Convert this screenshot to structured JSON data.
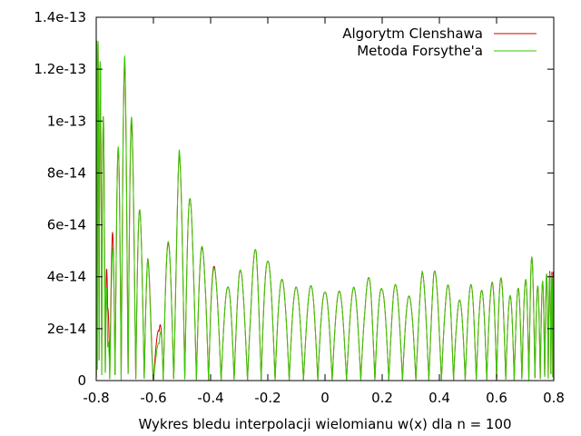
{
  "chart_data": {
    "type": "line",
    "title": "",
    "xlabel": "Wykres bledu interpolacji wielomianu w(x) dla n = 100",
    "ylabel": "",
    "xlim": [
      -0.8,
      0.8
    ],
    "ylim": [
      0,
      1.4e-13
    ],
    "grid": false,
    "legend_position": "top-right",
    "x_ticks": [
      {
        "value": -0.8,
        "label": "-0.8"
      },
      {
        "value": -0.6,
        "label": "-0.6"
      },
      {
        "value": -0.4,
        "label": "-0.4"
      },
      {
        "value": -0.2,
        "label": "-0.2"
      },
      {
        "value": 0,
        "label": "0"
      },
      {
        "value": 0.2,
        "label": "0.2"
      },
      {
        "value": 0.4,
        "label": "0.4"
      },
      {
        "value": 0.6,
        "label": "0.6"
      },
      {
        "value": 0.8,
        "label": "0.8"
      }
    ],
    "y_ticks": [
      {
        "value": 0,
        "label": "0"
      },
      {
        "value": 2e-14,
        "label": "2e-14"
      },
      {
        "value": 4e-14,
        "label": "4e-14"
      },
      {
        "value": 6e-14,
        "label": "6e-14"
      },
      {
        "value": 8e-14,
        "label": "8e-14"
      },
      {
        "value": 1e-13,
        "label": "1e-13"
      },
      {
        "value": 1.2e-13,
        "label": "1.2e-13"
      },
      {
        "value": 1.4e-13,
        "label": "1.4e-13"
      }
    ],
    "oscillation_count": 100,
    "series": [
      {
        "name": "Algorytm Clenshawa",
        "color": "#cc0000",
        "peaks": [
          [
            -0.79,
            1.31e-13
          ],
          [
            -0.77,
            9.2e-14
          ],
          [
            -0.76,
            2.8e-14
          ],
          [
            -0.73,
            8e-14
          ],
          [
            -0.7,
            1.23e-13
          ],
          [
            -0.68,
            1.05e-13
          ],
          [
            -0.66,
            7.5e-14
          ],
          [
            -0.64,
            6e-14
          ],
          [
            -0.62,
            5e-14
          ],
          [
            -0.6,
            1.5e-14
          ],
          [
            -0.58,
            2e-14
          ],
          [
            -0.56,
            5.5e-14
          ],
          [
            -0.53,
            5e-14
          ],
          [
            -0.51,
            8.8e-14
          ],
          [
            -0.48,
            7.8e-14
          ],
          [
            -0.46,
            6e-14
          ],
          [
            -0.44,
            5.5e-14
          ],
          [
            -0.42,
            4.8e-14
          ],
          [
            -0.4,
            5.2e-14
          ],
          [
            -0.38,
            4e-14
          ],
          [
            -0.36,
            3.4e-14
          ],
          [
            -0.34,
            3.6e-14
          ],
          [
            -0.32,
            4.2e-14
          ],
          [
            -0.3,
            4.4e-14
          ],
          [
            -0.28,
            3.8e-14
          ],
          [
            -0.26,
            3.8e-14
          ],
          [
            -0.24,
            5.5e-14
          ],
          [
            -0.22,
            5.3e-14
          ],
          [
            -0.2,
            4.6e-14
          ],
          [
            -0.18,
            4.5e-14
          ],
          [
            -0.16,
            4e-14
          ],
          [
            -0.14,
            3.8e-14
          ],
          [
            -0.12,
            3.8e-14
          ],
          [
            -0.1,
            3.6e-14
          ],
          [
            -0.08,
            3.4e-14
          ],
          [
            -0.06,
            3.5e-14
          ],
          [
            -0.04,
            3.8e-14
          ],
          [
            -0.02,
            3.6e-14
          ],
          [
            0.0,
            3.4e-14
          ],
          [
            0.02,
            3.6e-14
          ],
          [
            0.04,
            3.5e-14
          ],
          [
            0.06,
            3.4e-14
          ],
          [
            0.08,
            3.3e-14
          ],
          [
            0.1,
            3.6e-14
          ],
          [
            0.12,
            3.6e-14
          ],
          [
            0.14,
            3.4e-14
          ],
          [
            0.16,
            4.4e-14
          ],
          [
            0.18,
            4e-14
          ],
          [
            0.2,
            3.5e-14
          ],
          [
            0.22,
            3.6e-14
          ],
          [
            0.24,
            3.8e-14
          ],
          [
            0.26,
            3.5e-14
          ],
          [
            0.28,
            3.4e-14
          ],
          [
            0.3,
            3.2e-14
          ],
          [
            0.32,
            3.3e-14
          ],
          [
            0.34,
            4.2e-14
          ],
          [
            0.36,
            3.6e-14
          ],
          [
            0.38,
            4.4e-14
          ],
          [
            0.4,
            3.6e-14
          ],
          [
            0.42,
            3.4e-14
          ],
          [
            0.44,
            4e-14
          ],
          [
            0.46,
            3e-14
          ],
          [
            0.48,
            3.2e-14
          ],
          [
            0.5,
            3.6e-14
          ],
          [
            0.52,
            3.8e-14
          ],
          [
            0.54,
            3.4e-14
          ],
          [
            0.56,
            3.6e-14
          ],
          [
            0.58,
            3.6e-14
          ],
          [
            0.6,
            4.5e-14
          ],
          [
            0.62,
            3.8e-14
          ],
          [
            0.64,
            3.2e-14
          ],
          [
            0.66,
            3.4e-14
          ],
          [
            0.68,
            3.6e-14
          ],
          [
            0.7,
            3.8e-14
          ],
          [
            0.72,
            5e-14
          ],
          [
            0.74,
            3.6e-14
          ],
          [
            0.76,
            3.8e-14
          ],
          [
            0.78,
            4.2e-14
          ],
          [
            0.8,
            4.2e-14
          ]
        ]
      },
      {
        "name": "Metoda Forsythe'a",
        "color": "#33cc00",
        "peaks": [
          [
            -0.79,
            1.31e-13
          ],
          [
            -0.77,
            9.2e-14
          ],
          [
            -0.76,
            1.3e-14
          ],
          [
            -0.73,
            8e-14
          ],
          [
            -0.7,
            1.26e-13
          ],
          [
            -0.68,
            1.08e-13
          ],
          [
            -0.66,
            7.5e-14
          ],
          [
            -0.64,
            6e-14
          ],
          [
            -0.62,
            5e-14
          ],
          [
            -0.6,
            1e-14
          ],
          [
            -0.58,
            1.5e-14
          ],
          [
            -0.56,
            5.6e-14
          ],
          [
            -0.53,
            5e-14
          ],
          [
            -0.51,
            8.9e-14
          ],
          [
            -0.48,
            7.8e-14
          ],
          [
            -0.46,
            6e-14
          ],
          [
            -0.44,
            5.6e-14
          ],
          [
            -0.42,
            4.8e-14
          ],
          [
            -0.4,
            5e-14
          ],
          [
            -0.38,
            4e-14
          ],
          [
            -0.36,
            3.4e-14
          ],
          [
            -0.34,
            3.6e-14
          ],
          [
            -0.32,
            4.2e-14
          ],
          [
            -0.3,
            4.4e-14
          ],
          [
            -0.28,
            3.8e-14
          ],
          [
            -0.26,
            3.8e-14
          ],
          [
            -0.24,
            5.5e-14
          ],
          [
            -0.22,
            5.3e-14
          ],
          [
            -0.2,
            4.6e-14
          ],
          [
            -0.18,
            4.5e-14
          ],
          [
            -0.16,
            4e-14
          ],
          [
            -0.14,
            3.8e-14
          ],
          [
            -0.12,
            3.8e-14
          ],
          [
            -0.1,
            3.6e-14
          ],
          [
            -0.08,
            3.4e-14
          ],
          [
            -0.06,
            3.5e-14
          ],
          [
            -0.04,
            3.8e-14
          ],
          [
            -0.02,
            3.6e-14
          ],
          [
            0.0,
            3.4e-14
          ],
          [
            0.02,
            3.6e-14
          ],
          [
            0.04,
            3.5e-14
          ],
          [
            0.06,
            3.4e-14
          ],
          [
            0.08,
            3.3e-14
          ],
          [
            0.1,
            3.6e-14
          ],
          [
            0.12,
            3.6e-14
          ],
          [
            0.14,
            3.4e-14
          ],
          [
            0.16,
            4.4e-14
          ],
          [
            0.18,
            4e-14
          ],
          [
            0.2,
            3.5e-14
          ],
          [
            0.22,
            3.6e-14
          ],
          [
            0.24,
            3.8e-14
          ],
          [
            0.26,
            3.5e-14
          ],
          [
            0.28,
            3.4e-14
          ],
          [
            0.3,
            3.2e-14
          ],
          [
            0.32,
            3.3e-14
          ],
          [
            0.34,
            4.2e-14
          ],
          [
            0.36,
            3.6e-14
          ],
          [
            0.38,
            4.4e-14
          ],
          [
            0.4,
            3.6e-14
          ],
          [
            0.42,
            3.4e-14
          ],
          [
            0.44,
            4e-14
          ],
          [
            0.46,
            3e-14
          ],
          [
            0.48,
            3.2e-14
          ],
          [
            0.5,
            3.6e-14
          ],
          [
            0.52,
            3.8e-14
          ],
          [
            0.54,
            3.4e-14
          ],
          [
            0.56,
            3.6e-14
          ],
          [
            0.58,
            3.6e-14
          ],
          [
            0.6,
            4.6e-14
          ],
          [
            0.62,
            3.8e-14
          ],
          [
            0.64,
            3.2e-14
          ],
          [
            0.66,
            3.4e-14
          ],
          [
            0.68,
            3.6e-14
          ],
          [
            0.7,
            3.8e-14
          ],
          [
            0.72,
            5e-14
          ],
          [
            0.74,
            3.6e-14
          ],
          [
            0.76,
            3.8e-14
          ],
          [
            0.78,
            4.2e-14
          ],
          [
            0.8,
            4e-14
          ]
        ]
      }
    ]
  }
}
